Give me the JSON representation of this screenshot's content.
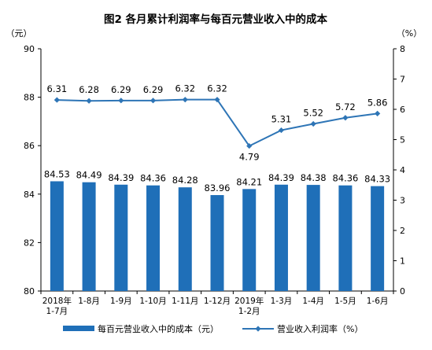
{
  "chart_data": {
    "type": "bar",
    "title": "图2  各月累计利润率与每百元营业收入中的成本",
    "left_unit": "（元）",
    "right_unit": "（%）",
    "categories": [
      "2018年\n1-7月",
      "1-8月",
      "1-9月",
      "1-10月",
      "1-11月",
      "1-12月",
      "2019年\n1-2月",
      "1-3月",
      "1-4月",
      "1-5月",
      "1-6月"
    ],
    "series": [
      {
        "name": "每百元营业收入中的成本（元）",
        "type": "bar",
        "axis": "left",
        "color": "#1f6fb8",
        "values": [
          84.53,
          84.49,
          84.39,
          84.36,
          84.28,
          83.96,
          84.21,
          84.39,
          84.38,
          84.36,
          84.33
        ],
        "labels": [
          "84.53",
          "84.49",
          "84.39",
          "84.36",
          "84.28",
          "83.96",
          "84.21",
          "84.39",
          "84.38",
          "84.36",
          "84.33"
        ]
      },
      {
        "name": "营业收入利润率（%）",
        "type": "line",
        "axis": "right",
        "color": "#2e75b6",
        "values": [
          6.31,
          6.28,
          6.29,
          6.29,
          6.32,
          6.32,
          4.79,
          5.31,
          5.52,
          5.72,
          5.86
        ],
        "labels": [
          "6.31",
          "6.28",
          "6.29",
          "6.29",
          "6.32",
          "6.32",
          "4.79",
          "5.31",
          "5.52",
          "5.72",
          "5.86"
        ]
      }
    ],
    "left_axis": {
      "min": 80,
      "max": 90,
      "ticks": [
        "80",
        "82",
        "84",
        "86",
        "88",
        "90"
      ]
    },
    "right_axis": {
      "min": 0,
      "max": 8,
      "ticks": [
        "0",
        "1",
        "2",
        "3",
        "4",
        "5",
        "6",
        "7",
        "8"
      ]
    },
    "grid": false,
    "legend_position": "bottom"
  }
}
